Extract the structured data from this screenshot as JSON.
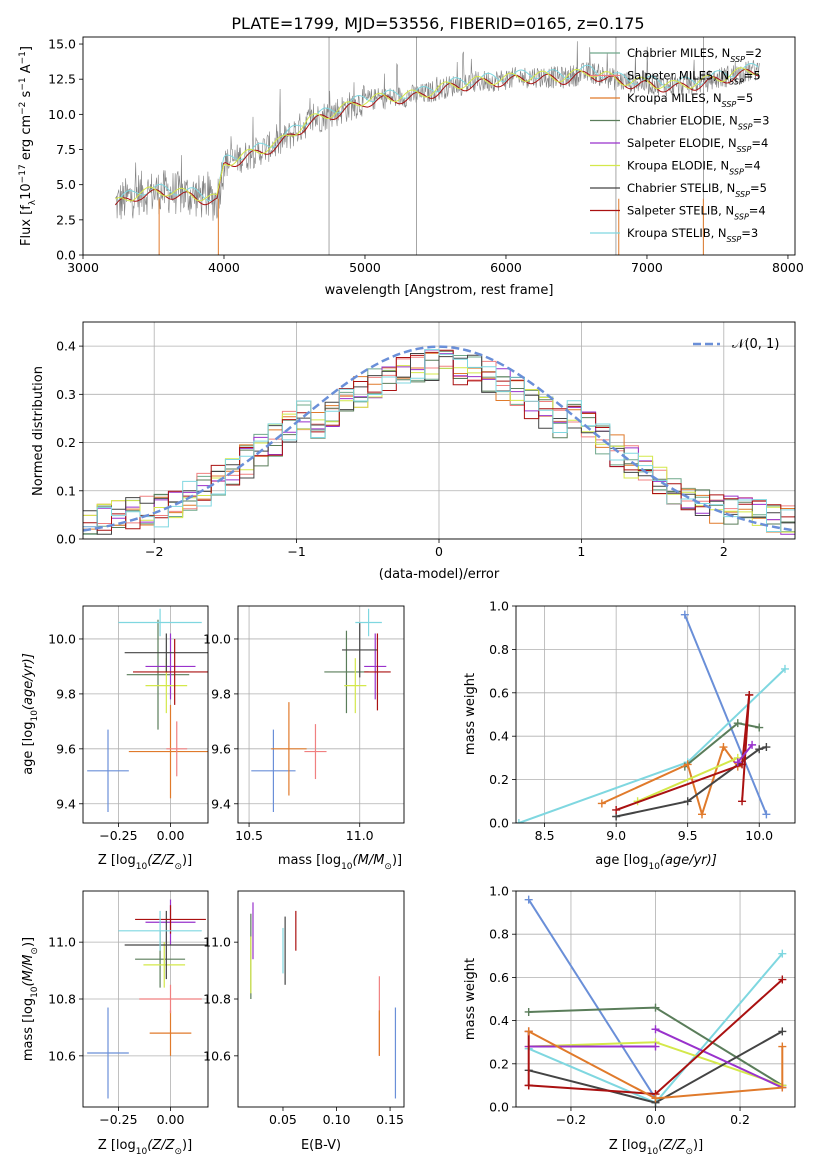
{
  "figure": {
    "title": "PLATE=1799, MJD=53556, FIBERID=0165, z=0.175"
  },
  "legend": {
    "entries": [
      {
        "label": "Chabrier MILES, N",
        "sub": "SSP",
        "eq": "=2",
        "color": "#6fa88a"
      },
      {
        "label": "Salpeter MILES, N",
        "sub": "SSP",
        "eq": "=5",
        "color": "#f08080"
      },
      {
        "label": "Kroupa MILES, N",
        "sub": "SSP",
        "eq": "=5",
        "color": "#e07a2b"
      },
      {
        "label": "Chabrier ELODIE, N",
        "sub": "SSP",
        "eq": "=3",
        "color": "#5a7d5a"
      },
      {
        "label": "Salpeter ELODIE, N",
        "sub": "SSP",
        "eq": "=4",
        "color": "#9932cc"
      },
      {
        "label": "Kroupa ELODIE, N",
        "sub": "SSP",
        "eq": "=4",
        "color": "#d4e84a"
      },
      {
        "label": "Chabrier STELIB, N",
        "sub": "SSP",
        "eq": "=5",
        "color": "#444444"
      },
      {
        "label": "Salpeter STELIB, N",
        "sub": "SSP",
        "eq": "=4",
        "color": "#aa1111"
      },
      {
        "label": "Kroupa STELIB, N",
        "sub": "SSP",
        "eq": "=3",
        "color": "#7fd7e0"
      }
    ],
    "normal_label": "𝒩(0, 1)"
  },
  "colors": {
    "data": "#808080",
    "model_a": "#7fd7e0",
    "model_b": "#aa1111",
    "model_c": "#d4e84a",
    "normal": "#6a8fd8",
    "grid": "#b0b0b0"
  },
  "chart_data": [
    {
      "type": "line",
      "name": "spectrum",
      "xlabel": "wavelength [Angstrom, rest frame]",
      "ylabel_parts": [
        "Flux [f",
        "λ",
        "10",
        "−17",
        " erg cm",
        "−2",
        " s",
        "−1",
        " A",
        "−1",
        "]"
      ],
      "xlim": [
        3000,
        8050
      ],
      "ylim": [
        0,
        15.5
      ],
      "xticks": [
        3000,
        4000,
        5000,
        6000,
        7000,
        8000
      ],
      "yticks": [
        0.0,
        2.5,
        5.0,
        7.5,
        10.0,
        12.5,
        15.0
      ],
      "xtick_labels": [
        "3000",
        "4000",
        "5000",
        "6000",
        "7000",
        "8000"
      ],
      "ytick_labels": [
        "0.0",
        "2.5",
        "5.0",
        "7.5",
        "10.0",
        "12.5",
        "15.0"
      ],
      "grid": false,
      "data_range": [
        3230,
        7800
      ],
      "continuum_x": [
        3230,
        3400,
        3600,
        3800,
        3950,
        4000,
        4200,
        4400,
        4600,
        4800,
        5000,
        5200,
        5400,
        5600,
        5800,
        6000,
        6200,
        6400,
        6600,
        6800,
        7000,
        7200,
        7400,
        7600,
        7800
      ],
      "continuum_y": [
        3.6,
        4.4,
        4.5,
        4.2,
        3.9,
        6.5,
        7.2,
        8.0,
        9.5,
        10.2,
        11.0,
        11.2,
        11.4,
        12.0,
        12.3,
        12.5,
        12.7,
        12.6,
        13.0,
        12.4,
        12.2,
        12.0,
        12.3,
        12.8,
        13.2
      ],
      "vlines": [
        4745,
        5365,
        6780,
        7400
      ],
      "drops": [
        3540,
        3960,
        6800,
        7400
      ],
      "noise_start": [
        3600,
        6.0
      ],
      "noise_end": [
        4000,
        1.0
      ]
    },
    {
      "type": "bar",
      "name": "residual-hist",
      "xlabel": "(data-model)/error",
      "ylabel": "Normed distribution",
      "xlim": [
        -2.5,
        2.5
      ],
      "ylim": [
        0,
        0.45
      ],
      "xticks": [
        -2,
        -1,
        0,
        1,
        2
      ],
      "yticks": [
        0.0,
        0.1,
        0.2,
        0.3,
        0.4
      ],
      "xtick_labels": [
        "−2",
        "−1",
        "0",
        "1",
        "2"
      ],
      "ytick_labels": [
        "0.0",
        "0.1",
        "0.2",
        "0.3",
        "0.4"
      ],
      "grid": true,
      "bins": 50,
      "normal_mu": 0,
      "normal_sigma": 1,
      "normal_peak": 0.3989,
      "series_colors": [
        "#6fa88a",
        "#f08080",
        "#e07a2b",
        "#5a7d5a",
        "#9932cc",
        "#d4e84a",
        "#444444",
        "#aa1111",
        "#7fd7e0",
        "#6a8fd8"
      ],
      "hist_profile": [
        0.3,
        0.35,
        0.4,
        0.43,
        0.4,
        0.37,
        0.42,
        0.39,
        0.36,
        0.34,
        0.33,
        0.35,
        0.37,
        0.39,
        0.41,
        0.4,
        0.38,
        0.36,
        0.31,
        0.29,
        0.25,
        0.23,
        0.2,
        0.18,
        0.15,
        0.14,
        0.12,
        0.09,
        0.07,
        0.06,
        0.05,
        0.04,
        0.03,
        0.03
      ]
    },
    {
      "type": "scatter",
      "name": "age-vs-Z",
      "xlabel_parts": [
        "Z [log",
        "10",
        "(Z/Z",
        "⊙",
        ")]"
      ],
      "ylabel_parts": [
        "age  [log",
        "10",
        "(age/yr)]"
      ],
      "xlim": [
        -0.42,
        0.18
      ],
      "ylim": [
        9.33,
        10.12
      ],
      "xticks": [
        -0.25,
        0.0
      ],
      "yticks": [
        9.4,
        9.6,
        9.8,
        10.0
      ],
      "xtick_labels": [
        "−0.25",
        "0.00"
      ],
      "ytick_labels": [
        "9.4",
        "9.6",
        "9.8",
        "10.0"
      ],
      "grid": true,
      "points": [
        {
          "x": -0.3,
          "y": 9.52,
          "xerr": 0.1,
          "yerr": 0.15,
          "color": "#6a8fd8"
        },
        {
          "x": 0.0,
          "y": 9.59,
          "xerr": 0.2,
          "yerr": 0.17,
          "color": "#e07a2b"
        },
        {
          "x": 0.03,
          "y": 9.6,
          "xerr": 0.05,
          "yerr": 0.1,
          "color": "#f08080"
        },
        {
          "x": -0.06,
          "y": 9.87,
          "xerr": 0.15,
          "yerr": 0.2,
          "color": "#5a7d5a"
        },
        {
          "x": 0.0,
          "y": 9.9,
          "xerr": 0.12,
          "yerr": 0.12,
          "color": "#9932cc"
        },
        {
          "x": -0.02,
          "y": 9.83,
          "xerr": 0.1,
          "yerr": 0.1,
          "color": "#d4e84a"
        },
        {
          "x": -0.02,
          "y": 9.95,
          "xerr": 0.2,
          "yerr": 0.07,
          "color": "#444444"
        },
        {
          "x": 0.02,
          "y": 9.88,
          "xerr": 0.2,
          "yerr": 0.12,
          "color": "#aa1111"
        },
        {
          "x": -0.05,
          "y": 10.06,
          "xerr": 0.2,
          "yerr": 0.05,
          "color": "#7fd7e0"
        }
      ]
    },
    {
      "type": "scatter",
      "name": "age-vs-mass",
      "xlabel_parts": [
        "mass [log",
        "10",
        "(M/M",
        "⊙",
        ")]"
      ],
      "xlim": [
        10.45,
        11.2
      ],
      "ylim": [
        9.33,
        10.12
      ],
      "xticks": [
        10.5,
        11.0
      ],
      "yticks": [
        9.4,
        9.6,
        9.8,
        10.0
      ],
      "xtick_labels": [
        "10.5",
        "11.0"
      ],
      "ytick_labels": [
        "9.4",
        "9.6",
        "9.8",
        "10.0"
      ],
      "grid": true,
      "points": [
        {
          "x": 10.61,
          "y": 9.52,
          "xerr": 0.1,
          "yerr": 0.15,
          "color": "#6a8fd8"
        },
        {
          "x": 10.68,
          "y": 9.6,
          "xerr": 0.08,
          "yerr": 0.17,
          "color": "#e07a2b"
        },
        {
          "x": 10.8,
          "y": 9.59,
          "xerr": 0.05,
          "yerr": 0.1,
          "color": "#f08080"
        },
        {
          "x": 10.94,
          "y": 9.88,
          "xerr": 0.1,
          "yerr": 0.15,
          "color": "#5a7d5a"
        },
        {
          "x": 11.07,
          "y": 9.9,
          "xerr": 0.05,
          "yerr": 0.12,
          "color": "#9932cc"
        },
        {
          "x": 10.98,
          "y": 9.83,
          "xerr": 0.05,
          "yerr": 0.1,
          "color": "#d4e84a"
        },
        {
          "x": 11.0,
          "y": 9.96,
          "xerr": 0.08,
          "yerr": 0.1,
          "color": "#444444"
        },
        {
          "x": 11.08,
          "y": 9.88,
          "xerr": 0.06,
          "yerr": 0.14,
          "color": "#aa1111"
        },
        {
          "x": 11.04,
          "y": 10.06,
          "xerr": 0.06,
          "yerr": 0.05,
          "color": "#7fd7e0"
        }
      ]
    },
    {
      "type": "line",
      "name": "weight-vs-age",
      "xlabel_parts": [
        "age  [log",
        "10",
        "(age/yr)]"
      ],
      "ylabel": "mass weight",
      "xlim": [
        8.3,
        10.25
      ],
      "ylim": [
        0,
        1
      ],
      "xticks": [
        8.5,
        9.0,
        9.5,
        10.0
      ],
      "yticks": [
        0.0,
        0.2,
        0.4,
        0.6,
        0.8,
        1.0
      ],
      "xtick_labels": [
        "8.5",
        "9.0",
        "9.5",
        "10.0"
      ],
      "ytick_labels": [
        "0.0",
        "0.2",
        "0.4",
        "0.6",
        "0.8",
        "1.0"
      ],
      "grid": true,
      "series": [
        {
          "color": "#6a8fd8",
          "x": [
            9.48,
            10.05
          ],
          "y": [
            0.96,
            0.04
          ]
        },
        {
          "color": "#7fd7e0",
          "x": [
            8.32,
            9.5,
            10.18
          ],
          "y": [
            0.0,
            0.28,
            0.71
          ]
        },
        {
          "color": "#5a7d5a",
          "x": [
            9.48,
            9.85,
            10.0
          ],
          "y": [
            0.26,
            0.46,
            0.44
          ]
        },
        {
          "color": "#e07a2b",
          "x": [
            8.9,
            9.5,
            9.6,
            9.75,
            9.85
          ],
          "y": [
            0.09,
            0.27,
            0.04,
            0.35,
            0.26
          ]
        },
        {
          "color": "#d4e84a",
          "x": [
            9.15,
            9.85
          ],
          "y": [
            0.1,
            0.3
          ]
        },
        {
          "color": "#444444",
          "x": [
            9.0,
            9.5,
            10.0,
            10.05
          ],
          "y": [
            0.03,
            0.1,
            0.34,
            0.35
          ]
        },
        {
          "color": "#aa1111",
          "x": [
            9.0,
            9.88,
            9.93
          ],
          "y": [
            0.06,
            0.27,
            0.59
          ]
        },
        {
          "color": "#aa1111",
          "x": [
            9.88,
            9.93
          ],
          "y": [
            0.1,
            0.59
          ]
        },
        {
          "color": "#9932cc",
          "x": [
            9.85,
            9.95
          ],
          "y": [
            0.28,
            0.36
          ]
        }
      ]
    },
    {
      "type": "scatter",
      "name": "mass-vs-Z",
      "xlabel_parts": [
        "Z [log",
        "10",
        "(Z/Z",
        "⊙",
        ")]"
      ],
      "ylabel_parts": [
        "mass [log",
        "10",
        "(M/M",
        "⊙",
        ")]"
      ],
      "xlim": [
        -0.42,
        0.18
      ],
      "ylim": [
        10.42,
        11.18
      ],
      "xticks": [
        -0.25,
        0.0
      ],
      "yticks": [
        10.6,
        10.8,
        11.0
      ],
      "xtick_labels": [
        "−0.25",
        "0.00"
      ],
      "ytick_labels": [
        "10.6",
        "10.8",
        "11.0"
      ],
      "grid": true,
      "points": [
        {
          "x": -0.3,
          "y": 10.61,
          "xerr": 0.1,
          "yerr": 0.16,
          "color": "#6a8fd8"
        },
        {
          "x": 0.0,
          "y": 10.68,
          "xerr": 0.1,
          "yerr": 0.08,
          "color": "#e07a2b"
        },
        {
          "x": 0.0,
          "y": 10.8,
          "xerr": 0.15,
          "yerr": 0.05,
          "color": "#f08080"
        },
        {
          "x": -0.05,
          "y": 10.94,
          "xerr": 0.12,
          "yerr": 0.1,
          "color": "#5a7d5a"
        },
        {
          "x": 0.0,
          "y": 11.07,
          "xerr": 0.12,
          "yerr": 0.08,
          "color": "#9932cc"
        },
        {
          "x": -0.03,
          "y": 10.92,
          "xerr": 0.1,
          "yerr": 0.08,
          "color": "#d4e84a"
        },
        {
          "x": -0.02,
          "y": 10.99,
          "xerr": 0.2,
          "yerr": 0.12,
          "color": "#444444"
        },
        {
          "x": 0.0,
          "y": 11.08,
          "xerr": 0.17,
          "yerr": 0.05,
          "color": "#aa1111"
        },
        {
          "x": -0.05,
          "y": 11.04,
          "xerr": 0.2,
          "yerr": 0.07,
          "color": "#7fd7e0"
        }
      ]
    },
    {
      "type": "scatter",
      "name": "mass-vs-ebv",
      "xlabel": "E(B-V)",
      "xlim": [
        0.008,
        0.163
      ],
      "ylim": [
        10.42,
        11.18
      ],
      "xticks": [
        0.05,
        0.1,
        0.15
      ],
      "yticks": [
        10.6,
        10.8,
        11.0
      ],
      "xtick_labels": [
        "0.05",
        "0.10",
        "0.15"
      ],
      "ytick_labels": [
        "10.6",
        "10.8",
        "11.0"
      ],
      "grid": false,
      "points": [
        {
          "x": 0.155,
          "y": 10.61,
          "xerr": 0,
          "yerr": 0.16,
          "color": "#6a8fd8"
        },
        {
          "x": 0.14,
          "y": 10.74,
          "xerr": 0,
          "yerr": 0.14,
          "color": "#f08080"
        },
        {
          "x": 0.14,
          "y": 10.68,
          "xerr": 0,
          "yerr": 0.08,
          "color": "#e07a2b"
        },
        {
          "x": 0.02,
          "y": 10.95,
          "xerr": 0,
          "yerr": 0.15,
          "color": "#5a7d5a"
        },
        {
          "x": 0.022,
          "y": 11.04,
          "xerr": 0,
          "yerr": 0.1,
          "color": "#9932cc"
        },
        {
          "x": 0.02,
          "y": 10.92,
          "xerr": 0,
          "yerr": 0.1,
          "color": "#d4e84a"
        },
        {
          "x": 0.052,
          "y": 10.97,
          "xerr": 0,
          "yerr": 0.12,
          "color": "#444444"
        },
        {
          "x": 0.062,
          "y": 11.04,
          "xerr": 0,
          "yerr": 0.07,
          "color": "#aa1111"
        },
        {
          "x": 0.05,
          "y": 10.97,
          "xerr": 0,
          "yerr": 0.08,
          "color": "#7fd7e0"
        }
      ]
    },
    {
      "type": "line",
      "name": "weight-vs-Z",
      "xlabel_parts": [
        "Z [log",
        "10",
        "(Z/Z",
        "⊙",
        ")]"
      ],
      "ylabel": "mass weight",
      "xlim": [
        -0.33,
        0.33
      ],
      "ylim": [
        0,
        1
      ],
      "xticks": [
        -0.2,
        0.0,
        0.2
      ],
      "yticks": [
        0.0,
        0.2,
        0.4,
        0.6,
        0.8,
        1.0
      ],
      "xtick_labels": [
        "−0.2",
        "0.0",
        "0.2"
      ],
      "ytick_labels": [
        "0.0",
        "0.2",
        "0.4",
        "0.6",
        "0.8",
        "1.0"
      ],
      "grid": true,
      "series": [
        {
          "color": "#6a8fd8",
          "x": [
            -0.3,
            0.0
          ],
          "y": [
            0.96,
            0.04
          ]
        },
        {
          "color": "#7fd7e0",
          "x": [
            -0.3,
            0.0,
            0.3
          ],
          "y": [
            0.27,
            0.02,
            0.71
          ]
        },
        {
          "color": "#5a7d5a",
          "x": [
            -0.3,
            0.0,
            0.3
          ],
          "y": [
            0.44,
            0.46,
            0.1
          ]
        },
        {
          "color": "#d4e84a",
          "x": [
            -0.3,
            0.0,
            0.3
          ],
          "y": [
            0.28,
            0.3,
            0.1
          ]
        },
        {
          "color": "#444444",
          "x": [
            -0.3,
            0.0,
            0.3
          ],
          "y": [
            0.17,
            0.02,
            0.35
          ]
        },
        {
          "color": "#9932cc",
          "x": [
            0.0,
            0.3
          ],
          "y": [
            0.36,
            0.09
          ]
        },
        {
          "color": "#9932cc",
          "x": [
            -0.3,
            0.0
          ],
          "y": [
            0.28,
            0.28
          ]
        },
        {
          "color": "#aa1111",
          "x": [
            -0.3,
            0.0,
            0.3
          ],
          "y": [
            0.1,
            0.06,
            0.59
          ]
        },
        {
          "color": "#aa1111",
          "x": [
            -0.3,
            -0.3
          ],
          "y": [
            0.1,
            0.35
          ]
        },
        {
          "color": "#e07a2b",
          "x": [
            -0.3,
            0.0,
            0.3,
            0.3
          ],
          "y": [
            0.35,
            0.04,
            0.09,
            0.28
          ]
        }
      ]
    }
  ]
}
